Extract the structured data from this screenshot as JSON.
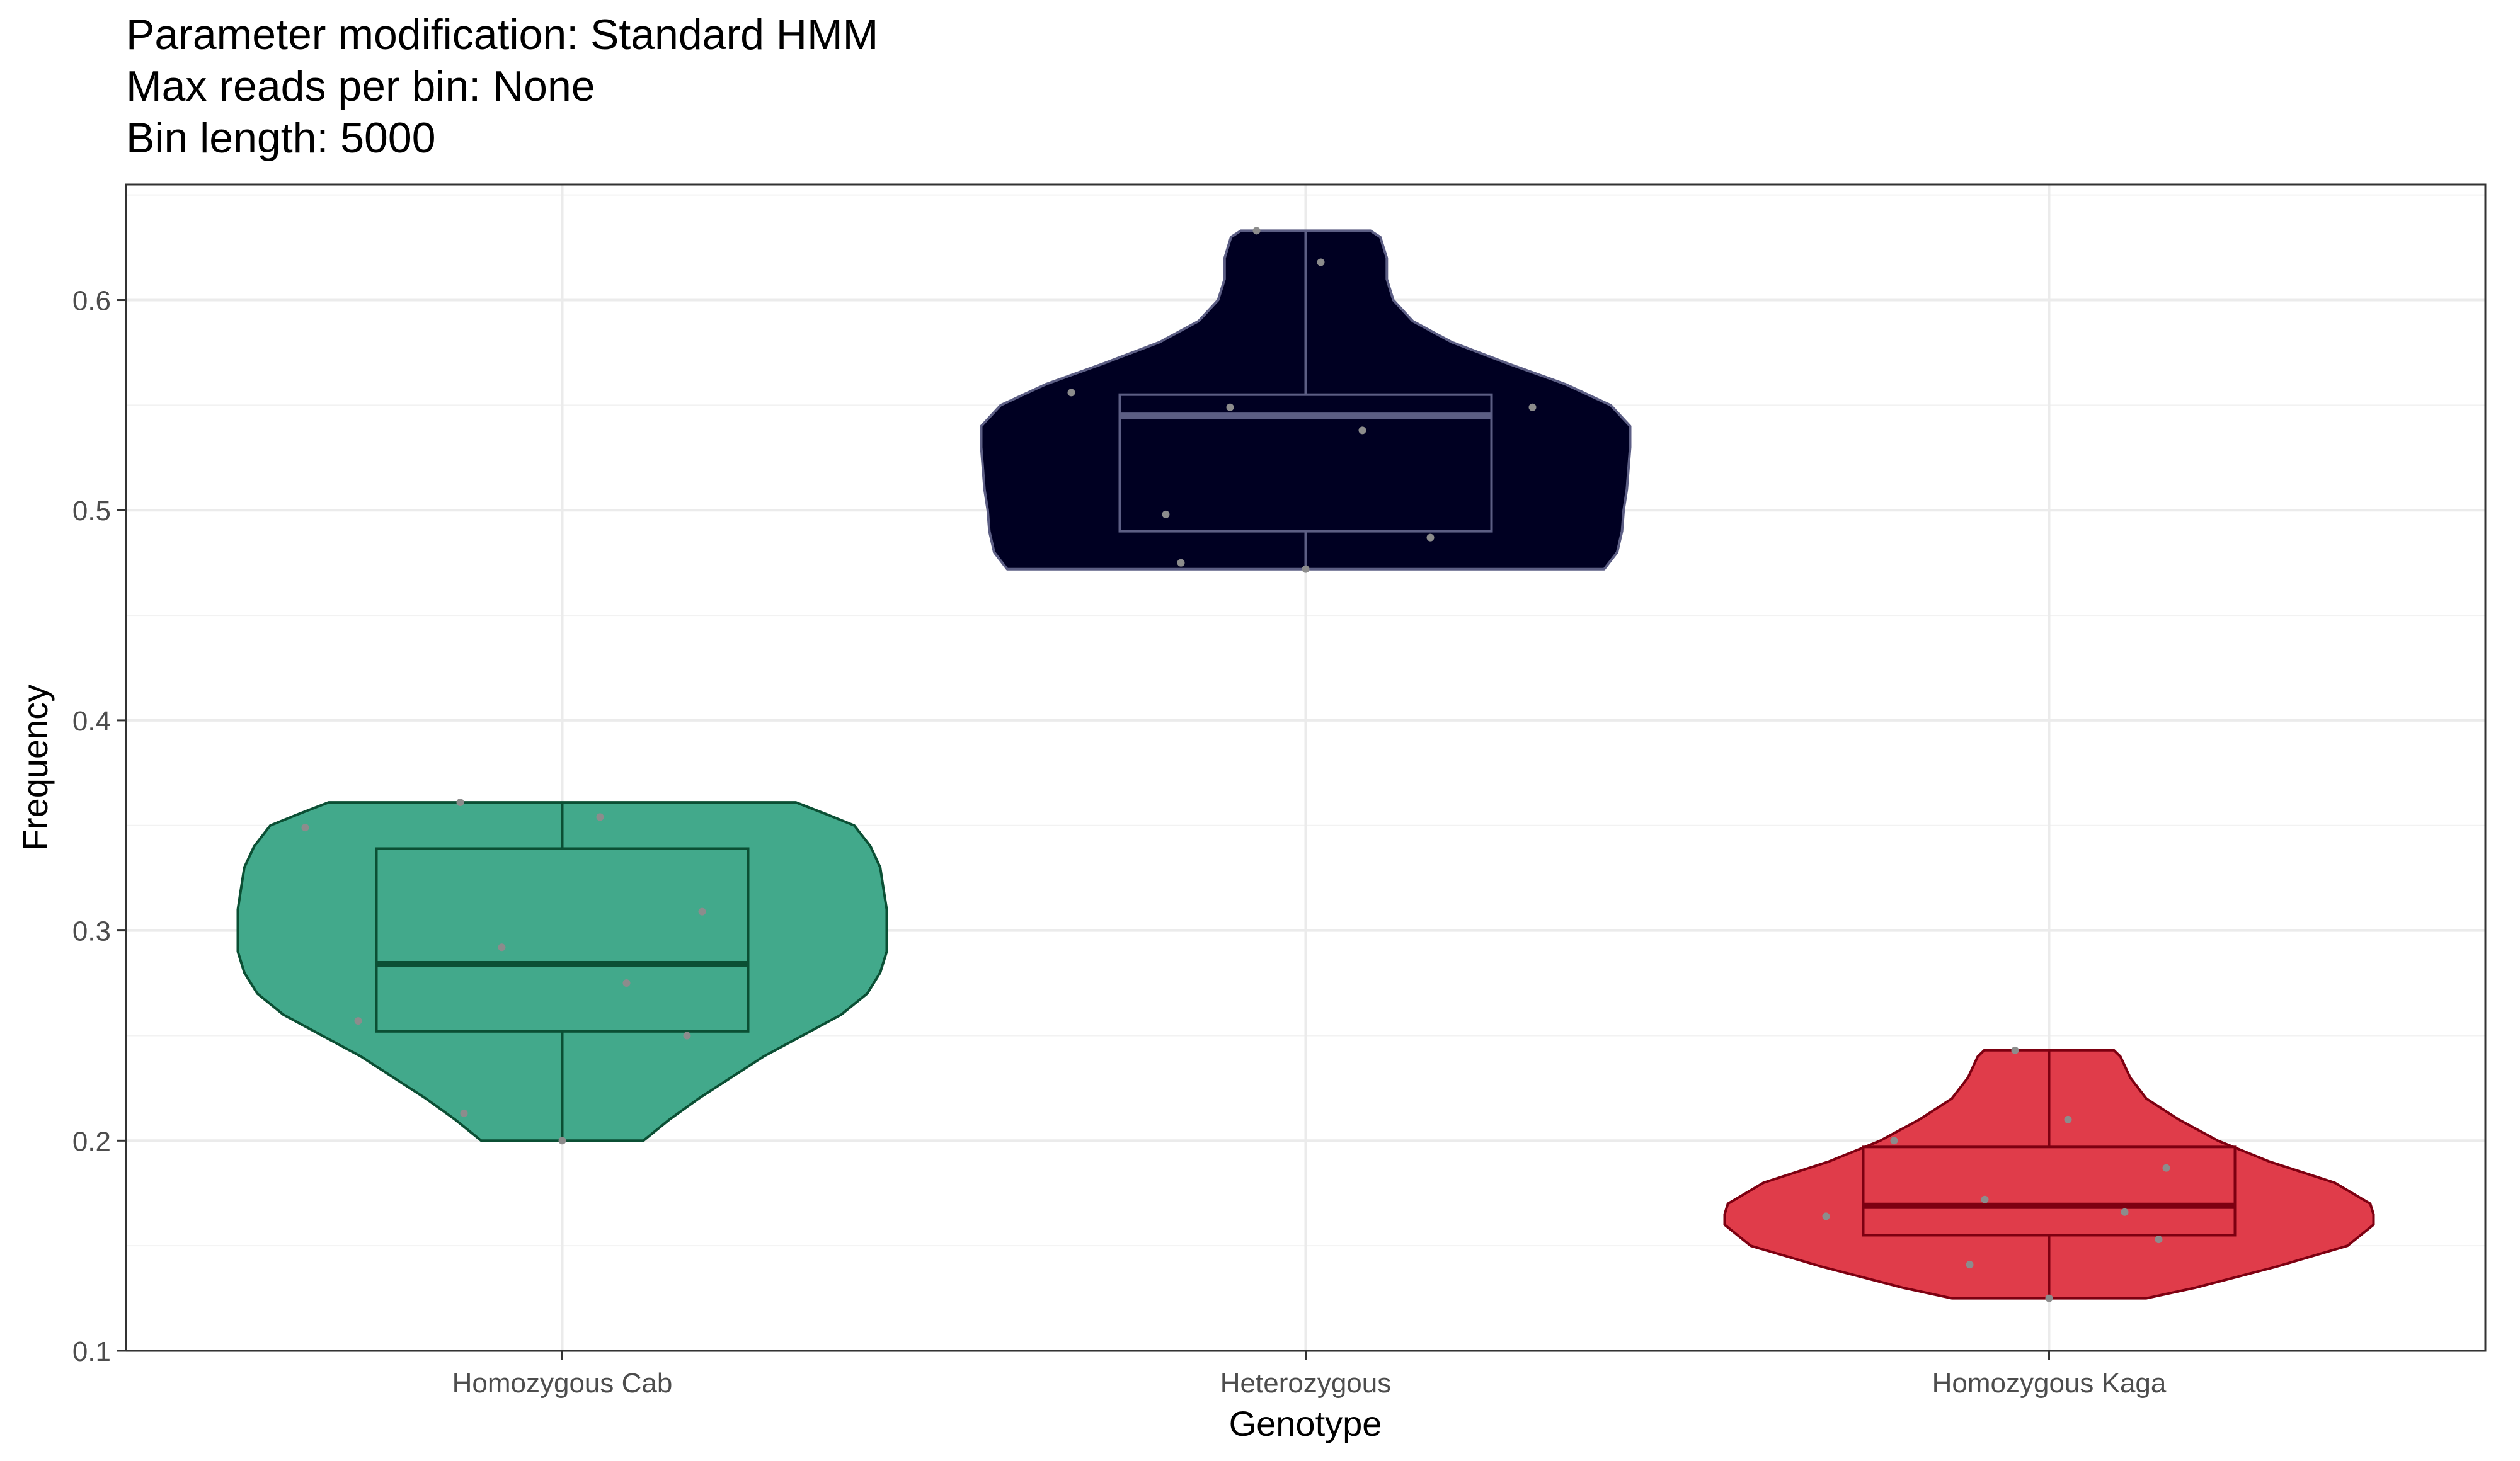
{
  "chart_data": {
    "type": "violin",
    "title_lines": [
      "Parameter modification: Standard HMM",
      "Max reads per bin: None",
      "Bin length: 5000"
    ],
    "xlabel": "Genotype",
    "ylabel": "Frequency",
    "ylim": [
      0.1,
      0.655
    ],
    "yticks": [
      0.1,
      0.2,
      0.3,
      0.4,
      0.5,
      0.6
    ],
    "ytick_labels": [
      "0.1",
      "0.2",
      "0.3",
      "0.4",
      "0.5",
      "0.6"
    ],
    "grid": true,
    "legend": "none",
    "categories": [
      "Homozygous Cab",
      "Heterozygous",
      "Homozygous Kaga"
    ],
    "groups": [
      {
        "category": "Homozygous Cab",
        "fill": "#42A98B",
        "line": "#0B4F34",
        "box": {
          "q1": 0.252,
          "median": 0.284,
          "q3": 0.339,
          "whisker_low": 0.2,
          "whisker_high": 0.361
        },
        "density": [
          [
            0.2,
            0.25
          ],
          [
            0.21,
            0.33
          ],
          [
            0.22,
            0.42
          ],
          [
            0.23,
            0.52
          ],
          [
            0.24,
            0.62
          ],
          [
            0.25,
            0.74
          ],
          [
            0.26,
            0.86
          ],
          [
            0.27,
            0.94
          ],
          [
            0.28,
            0.98
          ],
          [
            0.29,
            1.0
          ],
          [
            0.3,
            1.0
          ],
          [
            0.31,
            1.0
          ],
          [
            0.32,
            0.99
          ],
          [
            0.33,
            0.98
          ],
          [
            0.34,
            0.95
          ],
          [
            0.35,
            0.9
          ],
          [
            0.355,
            0.82
          ],
          [
            0.361,
            0.72
          ]
        ],
        "points": [
          [
            -0.68,
            0.349
          ],
          [
            -0.54,
            0.257
          ],
          [
            -0.27,
            0.361
          ],
          [
            -0.26,
            0.213
          ],
          [
            -0.16,
            0.292
          ],
          [
            0.0,
            0.2
          ],
          [
            0.1,
            0.354
          ],
          [
            0.17,
            0.275
          ],
          [
            0.33,
            0.25
          ],
          [
            0.37,
            0.309
          ]
        ]
      },
      {
        "category": "Heterozygous",
        "fill": "#000022",
        "line": "#5C5E84",
        "box": {
          "q1": 0.49,
          "median": 0.545,
          "q3": 0.555,
          "whisker_low": 0.472,
          "whisker_high": 0.633
        },
        "density": [
          [
            0.472,
            0.92
          ],
          [
            0.48,
            0.96
          ],
          [
            0.49,
            0.975
          ],
          [
            0.5,
            0.98
          ],
          [
            0.51,
            0.99
          ],
          [
            0.52,
            0.995
          ],
          [
            0.53,
            1.0
          ],
          [
            0.54,
            1.0
          ],
          [
            0.55,
            0.94
          ],
          [
            0.56,
            0.8
          ],
          [
            0.57,
            0.62
          ],
          [
            0.58,
            0.45
          ],
          [
            0.59,
            0.33
          ],
          [
            0.6,
            0.27
          ],
          [
            0.61,
            0.25
          ],
          [
            0.62,
            0.25
          ],
          [
            0.63,
            0.23
          ],
          [
            0.633,
            0.2
          ]
        ],
        "points": [
          [
            -0.62,
            0.556
          ],
          [
            -0.37,
            0.498
          ],
          [
            -0.33,
            0.475
          ],
          [
            -0.2,
            0.549
          ],
          [
            -0.13,
            0.633
          ],
          [
            0.0,
            0.472
          ],
          [
            0.04,
            0.618
          ],
          [
            0.15,
            0.538
          ],
          [
            0.33,
            0.487
          ],
          [
            0.6,
            0.549
          ]
        ]
      },
      {
        "category": "Homozygous Kaga",
        "fill": "#E03C4A",
        "line": "#7D0011",
        "box": {
          "q1": 0.155,
          "median": 0.169,
          "q3": 0.197,
          "whisker_low": 0.125,
          "whisker_high": 0.243
        },
        "density": [
          [
            0.125,
            0.3
          ],
          [
            0.13,
            0.45
          ],
          [
            0.14,
            0.7
          ],
          [
            0.15,
            0.92
          ],
          [
            0.16,
            1.0
          ],
          [
            0.165,
            1.0
          ],
          [
            0.17,
            0.99
          ],
          [
            0.18,
            0.88
          ],
          [
            0.19,
            0.68
          ],
          [
            0.2,
            0.52
          ],
          [
            0.21,
            0.4
          ],
          [
            0.22,
            0.3
          ],
          [
            0.23,
            0.25
          ],
          [
            0.24,
            0.22
          ],
          [
            0.243,
            0.2
          ]
        ],
        "points": [
          [
            -0.59,
            0.164
          ],
          [
            -0.41,
            0.2
          ],
          [
            -0.21,
            0.141
          ],
          [
            -0.17,
            0.172
          ],
          [
            -0.09,
            0.243
          ],
          [
            0.0,
            0.125
          ],
          [
            0.05,
            0.21
          ],
          [
            0.2,
            0.166
          ],
          [
            0.29,
            0.153
          ],
          [
            0.31,
            0.187
          ]
        ]
      }
    ]
  }
}
